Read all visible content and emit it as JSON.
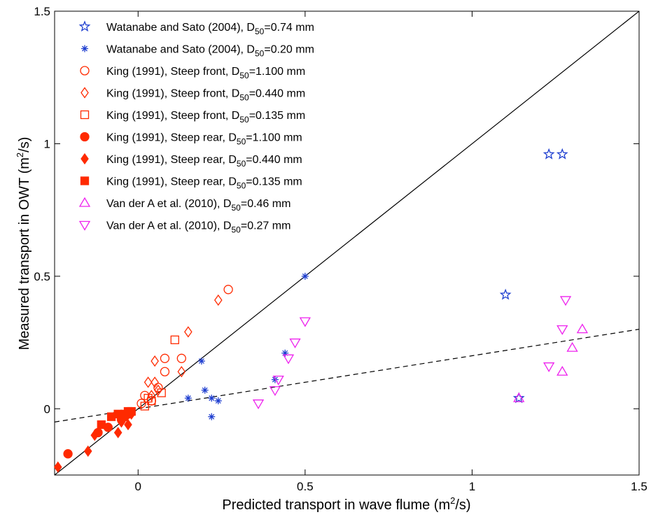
{
  "chart_data": {
    "type": "scatter",
    "xlabel": "Predicted transport in wave flume (m",
    "xlabel_sup": "2",
    "xlabel_end": "/s)",
    "ylabel": "Measured transport in OWT (m",
    "ylabel_sup": "2",
    "ylabel_end": "/s)",
    "xlim": [
      -0.25,
      1.5
    ],
    "ylim": [
      -0.25,
      1.5
    ],
    "xticks": [
      0,
      0.5,
      1,
      1.5
    ],
    "xtick_labels": [
      "0",
      "0.5",
      "1",
      "1.5"
    ],
    "yticks": [
      0,
      0.5,
      1,
      1.5
    ],
    "ytick_labels": [
      "0",
      "0.5",
      "1",
      "1.5"
    ],
    "grid": false,
    "legend_position": "top-left",
    "lines": [
      {
        "style": "solid",
        "slope": 1,
        "intercept": 0,
        "color": "#000000"
      },
      {
        "style": "dashed",
        "slope": 0.2,
        "intercept": 0.0,
        "color": "#000000"
      }
    ],
    "series": [
      {
        "label_pre": "Watanabe and Sato (2004), D",
        "label_sub": "50",
        "label_post": "=0.74 mm",
        "marker": "star",
        "filled": false,
        "color": "#1f3fd0",
        "points": [
          [
            1.1,
            0.43
          ],
          [
            1.23,
            0.96
          ],
          [
            1.27,
            0.96
          ],
          [
            1.14,
            0.04
          ]
        ]
      },
      {
        "label_pre": "Watanabe and Sato (2004), D",
        "label_sub": "50",
        "label_post": "=0.20 mm",
        "marker": "asterisk",
        "filled": false,
        "color": "#1f3fd0",
        "points": [
          [
            0.5,
            0.5
          ],
          [
            0.44,
            0.21
          ],
          [
            0.41,
            0.11
          ],
          [
            0.19,
            0.18
          ],
          [
            0.2,
            0.07
          ],
          [
            0.15,
            0.04
          ],
          [
            0.22,
            0.04
          ],
          [
            0.24,
            0.03
          ],
          [
            0.22,
            -0.03
          ]
        ]
      },
      {
        "label_pre": "King (1991), Steep front, D",
        "label_sub": "50",
        "label_post": "=1.100 mm",
        "marker": "circle",
        "filled": false,
        "color": "#ff2a00",
        "points": [
          [
            0.27,
            0.45
          ],
          [
            0.08,
            0.19
          ],
          [
            0.13,
            0.19
          ],
          [
            0.08,
            0.14
          ],
          [
            0.06,
            0.08
          ],
          [
            0.02,
            0.05
          ],
          [
            0.04,
            0.03
          ],
          [
            0.01,
            0.02
          ]
        ]
      },
      {
        "label_pre": "King (1991), Steep front, D",
        "label_sub": "50",
        "label_post": "=0.440 mm",
        "marker": "diamond",
        "filled": false,
        "color": "#ff2a00",
        "points": [
          [
            0.24,
            0.41
          ],
          [
            0.15,
            0.29
          ],
          [
            0.05,
            0.18
          ],
          [
            0.03,
            0.1
          ],
          [
            0.05,
            0.1
          ],
          [
            0.13,
            0.14
          ],
          [
            0.06,
            0.07
          ],
          [
            0.04,
            0.05
          ]
        ]
      },
      {
        "label_pre": "King (1991), Steep front, D",
        "label_sub": "50",
        "label_post": "=0.135 mm",
        "marker": "square",
        "filled": false,
        "color": "#ff2a00",
        "points": [
          [
            0.11,
            0.26
          ],
          [
            0.07,
            0.06
          ],
          [
            0.03,
            0.04
          ],
          [
            0.02,
            0.01
          ],
          [
            0.04,
            0.03
          ]
        ]
      },
      {
        "label_pre": "King (1991), Steep rear, D",
        "label_sub": "50",
        "label_post": "=1.100 mm",
        "marker": "circle",
        "filled": true,
        "color": "#ff2a00",
        "points": [
          [
            -0.21,
            -0.17
          ],
          [
            -0.09,
            -0.07
          ],
          [
            -0.12,
            -0.09
          ],
          [
            -0.05,
            -0.04
          ],
          [
            -0.04,
            -0.03
          ],
          [
            -0.03,
            -0.02
          ]
        ]
      },
      {
        "label_pre": "King (1991), Steep rear, D",
        "label_sub": "50",
        "label_post": "=0.440 mm",
        "marker": "diamond",
        "filled": true,
        "color": "#ff2a00",
        "points": [
          [
            -0.24,
            -0.22
          ],
          [
            -0.15,
            -0.16
          ],
          [
            -0.13,
            -0.1
          ],
          [
            -0.06,
            -0.09
          ],
          [
            -0.03,
            -0.06
          ],
          [
            -0.05,
            -0.05
          ],
          [
            -0.02,
            -0.02
          ]
        ]
      },
      {
        "label_pre": "King (1991), Steep rear, D",
        "label_sub": "50",
        "label_post": "=0.135 mm",
        "marker": "square",
        "filled": true,
        "color": "#ff2a00",
        "points": [
          [
            -0.11,
            -0.06
          ],
          [
            -0.08,
            -0.03
          ],
          [
            -0.06,
            -0.02
          ],
          [
            -0.04,
            -0.02
          ],
          [
            -0.03,
            -0.01
          ],
          [
            -0.02,
            -0.01
          ]
        ]
      },
      {
        "label_pre": "Van der A et al. (2010), D",
        "label_sub": "50",
        "label_post": "=0.46 mm",
        "marker": "triangle-up",
        "filled": false,
        "color": "#ee22ee",
        "points": [
          [
            1.33,
            0.3
          ],
          [
            1.3,
            0.23
          ],
          [
            1.27,
            0.14
          ],
          [
            1.14,
            0.04
          ]
        ]
      },
      {
        "label_pre": "Van der A et al. (2010), D",
        "label_sub": "50",
        "label_post": "=0.27 mm",
        "marker": "triangle-down",
        "filled": false,
        "color": "#ee22ee",
        "points": [
          [
            0.5,
            0.33
          ],
          [
            0.47,
            0.25
          ],
          [
            0.45,
            0.19
          ],
          [
            0.42,
            0.11
          ],
          [
            0.41,
            0.07
          ],
          [
            0.36,
            0.02
          ],
          [
            1.28,
            0.41
          ],
          [
            1.27,
            0.3
          ],
          [
            1.23,
            0.16
          ]
        ]
      }
    ]
  }
}
